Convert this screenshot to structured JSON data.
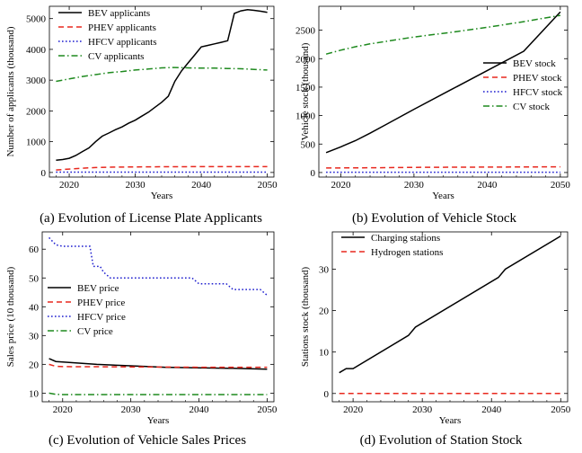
{
  "chart_data": [
    {
      "type": "line",
      "caption": "(a) Evolution of License Plate Applicants",
      "xlabel": "Years",
      "ylabel": "Number of applicants (thousand)",
      "xlim": [
        2017,
        2051
      ],
      "ylim": [
        -150,
        5400
      ],
      "xticks": [
        2020,
        2030,
        2040,
        2050
      ],
      "yticks": [
        0,
        1000,
        2000,
        3000,
        4000,
        5000
      ],
      "legend": "top-left",
      "series": [
        {
          "name": "BEV applicants",
          "color": "#000000",
          "dash": "solid",
          "x": [
            2018,
            2019,
            2020,
            2021,
            2022,
            2023,
            2024,
            2025,
            2026,
            2027,
            2028,
            2029,
            2030,
            2031,
            2032,
            2033,
            2034,
            2035,
            2036,
            2037,
            2038,
            2039,
            2040,
            2041,
            2042,
            2043,
            2044,
            2045,
            2046,
            2047,
            2048,
            2049,
            2050
          ],
          "y": [
            400,
            420,
            460,
            550,
            680,
            800,
            1000,
            1180,
            1280,
            1390,
            1480,
            1600,
            1700,
            1830,
            1960,
            2120,
            2280,
            2480,
            2960,
            3300,
            3560,
            3820,
            4080,
            4130,
            4180,
            4230,
            4280,
            5170,
            5250,
            5290,
            5270,
            5240,
            5200
          ]
        },
        {
          "name": "PHEV applicants",
          "color": "#e8281e",
          "dash": "dashed",
          "x": [
            2018,
            2020,
            2022,
            2024,
            2026,
            2030,
            2035,
            2040,
            2045,
            2050
          ],
          "y": [
            80,
            110,
            140,
            160,
            170,
            180,
            185,
            190,
            190,
            190
          ]
        },
        {
          "name": "HFCV applicants",
          "color": "#1f1fcf",
          "dash": "dotted",
          "x": [
            2018,
            2030,
            2040,
            2050
          ],
          "y": [
            10,
            10,
            10,
            10
          ]
        },
        {
          "name": "CV applicants",
          "color": "#1f8a1f",
          "dash": "dashdot",
          "x": [
            2018,
            2020,
            2022,
            2024,
            2026,
            2028,
            2030,
            2032,
            2034,
            2036,
            2038,
            2040,
            2042,
            2044,
            2046,
            2048,
            2050
          ],
          "y": [
            2960,
            3040,
            3120,
            3180,
            3240,
            3280,
            3330,
            3360,
            3400,
            3410,
            3400,
            3390,
            3390,
            3380,
            3370,
            3350,
            3330
          ]
        }
      ]
    },
    {
      "type": "line",
      "caption": "(b) Evolution of Vehicle Stock",
      "xlabel": "Years",
      "ylabel": "Vehicle stock (thousand)",
      "xlim": [
        2017,
        2051
      ],
      "ylim": [
        -80,
        2920
      ],
      "xticks": [
        2020,
        2030,
        2040,
        2050
      ],
      "yticks": [
        0,
        500,
        1000,
        1500,
        2000,
        2500
      ],
      "legend": "right",
      "series": [
        {
          "name": "BEV stock",
          "color": "#000000",
          "dash": "solid",
          "x": [
            2018,
            2020,
            2022,
            2024,
            2026,
            2028,
            2030,
            2035,
            2040,
            2045,
            2050
          ],
          "y": [
            350,
            450,
            560,
            690,
            830,
            970,
            1110,
            1450,
            1790,
            2130,
            2820
          ]
        },
        {
          "name": "PHEV stock",
          "color": "#e8281e",
          "dash": "dashed",
          "x": [
            2018,
            2025,
            2030,
            2040,
            2050
          ],
          "y": [
            80,
            85,
            90,
            95,
            100
          ]
        },
        {
          "name": "HFCV stock",
          "color": "#1f1fcf",
          "dash": "dotted",
          "x": [
            2018,
            2030,
            2040,
            2050
          ],
          "y": [
            5,
            5,
            5,
            5
          ]
        },
        {
          "name": "CV stock",
          "color": "#1f8a1f",
          "dash": "dashdot",
          "x": [
            2018,
            2020,
            2022,
            2024,
            2026,
            2028,
            2030,
            2035,
            2040,
            2045,
            2050
          ],
          "y": [
            2080,
            2150,
            2210,
            2260,
            2300,
            2340,
            2380,
            2460,
            2550,
            2650,
            2760
          ]
        }
      ]
    },
    {
      "type": "line",
      "caption": "(c) Evolution of Vehicle Sales Prices",
      "xlabel": "Years",
      "ylabel": "Sales price (10 thousand)",
      "xlim": [
        2017,
        2051
      ],
      "ylim": [
        7,
        66
      ],
      "xticks": [
        2020,
        2030,
        2040,
        2050
      ],
      "yticks": [
        10,
        20,
        30,
        40,
        50,
        60
      ],
      "legend": "left",
      "series": [
        {
          "name": "BEV price",
          "color": "#000000",
          "dash": "solid",
          "x": [
            2018,
            2019,
            2020,
            2025,
            2030,
            2035,
            2040,
            2045,
            2050
          ],
          "y": [
            22,
            21,
            20.8,
            20,
            19.5,
            19,
            18.8,
            18.6,
            18.3
          ]
        },
        {
          "name": "PHEV price",
          "color": "#e8281e",
          "dash": "dashed",
          "x": [
            2018,
            2019,
            2020,
            2030,
            2040,
            2050
          ],
          "y": [
            20,
            19.3,
            19.2,
            19.1,
            19,
            19
          ]
        },
        {
          "name": "HFCV price",
          "color": "#1f1fcf",
          "dash": "dotted",
          "x": [
            2018,
            2019,
            2020,
            2024,
            2024.5,
            2025.5,
            2026,
            2027,
            2039,
            2040,
            2044,
            2045,
            2049,
            2050
          ],
          "y": [
            64,
            61.5,
            61,
            61,
            54,
            54,
            52,
            50,
            50,
            48,
            48,
            46,
            46,
            44
          ]
        },
        {
          "name": "CV price",
          "color": "#1f8a1f",
          "dash": "dashdot",
          "x": [
            2018,
            2019,
            2020,
            2030,
            2040,
            2050
          ],
          "y": [
            10,
            9.6,
            9.5,
            9.5,
            9.5,
            9.5
          ]
        }
      ]
    },
    {
      "type": "line",
      "caption": "(d) Evolution of Station Stock",
      "xlabel": "Years",
      "ylabel": "Stations stock (thousand)",
      "xlim": [
        2017,
        2051
      ],
      "ylim": [
        -2,
        39
      ],
      "xticks": [
        2020,
        2030,
        2040,
        2050
      ],
      "yticks": [
        0,
        10,
        20,
        30
      ],
      "legend": "top-left",
      "series": [
        {
          "name": "Charging stations",
          "color": "#000000",
          "dash": "solid",
          "x": [
            2018,
            2019,
            2020,
            2028,
            2029,
            2041,
            2042,
            2050
          ],
          "y": [
            5,
            6,
            6,
            14,
            16,
            28,
            30,
            38
          ]
        },
        {
          "name": "Hydrogen stations",
          "color": "#e8281e",
          "dash": "dashed",
          "x": [
            2018,
            2030,
            2040,
            2050
          ],
          "y": [
            0,
            0,
            0,
            0
          ]
        }
      ]
    }
  ]
}
